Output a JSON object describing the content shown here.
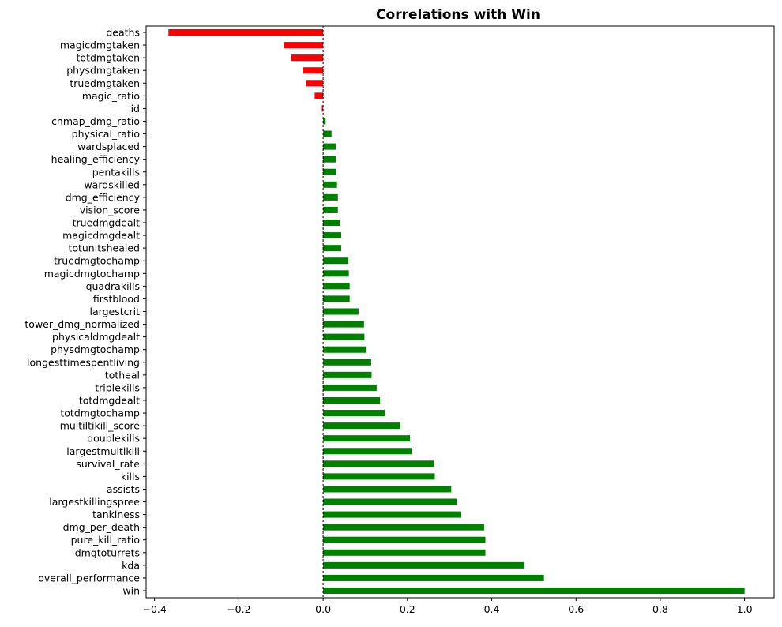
{
  "chart_data": {
    "type": "bar",
    "orientation": "horizontal",
    "title": "Correlations with Win",
    "xlabel": "",
    "ylabel": "",
    "xlim": [
      -0.42,
      1.07
    ],
    "xticks": [
      -0.4,
      -0.2,
      0.0,
      0.2,
      0.4,
      0.6,
      0.8,
      1.0
    ],
    "xtick_labels": [
      "−0.4",
      "−0.2",
      "0.0",
      "0.2",
      "0.4",
      "0.6",
      "0.8",
      "1.0"
    ],
    "grid": false,
    "zero_line": true,
    "colors": {
      "positive": "#008000",
      "negative": "#ff0000"
    },
    "categories": [
      "deaths",
      "magicdmgtaken",
      "totdmgtaken",
      "physdmgtaken",
      "truedmgtaken",
      "magic_ratio",
      "id",
      "chmap_dmg_ratio",
      "physical_ratio",
      "wardsplaced",
      "healing_efficiency",
      "pentakills",
      "wardskilled",
      "dmg_efficiency",
      "vision_score",
      "truedmgdealt",
      "magicdmgdealt",
      "totunitshealed",
      "truedmgtochamp",
      "magicdmgtochamp",
      "quadrakills",
      "firstblood",
      "largestcrit",
      "tower_dmg_normalized",
      "physicaldmgdealt",
      "physdmgtochamp",
      "longesttimespentliving",
      "totheal",
      "triplekills",
      "totdmgdealt",
      "totdmgtochamp",
      "multiltikill_score",
      "doublekills",
      "largestmultikill",
      "survival_rate",
      "kills",
      "assists",
      "largestkillingspree",
      "tankiness",
      "dmg_per_death",
      "pure_kill_ratio",
      "dmgtoturrets",
      "kda",
      "overall_performance",
      "win"
    ],
    "values": [
      -0.367,
      -0.092,
      -0.076,
      -0.047,
      -0.04,
      -0.02,
      -0.003,
      0.006,
      0.02,
      0.03,
      0.03,
      0.031,
      0.033,
      0.035,
      0.035,
      0.04,
      0.043,
      0.043,
      0.06,
      0.061,
      0.063,
      0.063,
      0.084,
      0.097,
      0.098,
      0.101,
      0.114,
      0.115,
      0.127,
      0.135,
      0.146,
      0.183,
      0.206,
      0.21,
      0.263,
      0.265,
      0.304,
      0.317,
      0.327,
      0.382,
      0.385,
      0.385,
      0.478,
      0.524,
      1.0
    ]
  }
}
